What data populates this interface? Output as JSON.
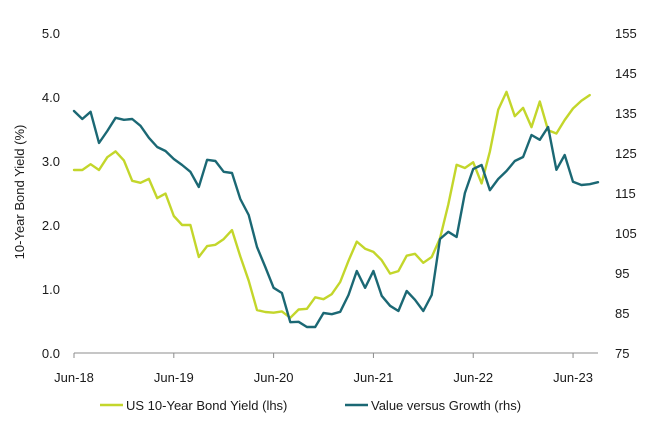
{
  "chart_data": {
    "type": "line",
    "ylabel": "10-Year Bond Yield (%)",
    "y_left": {
      "ticks": [
        "0.0",
        "1.0",
        "2.0",
        "3.0",
        "4.0",
        "5.0"
      ],
      "range": [
        0,
        5
      ]
    },
    "y_right": {
      "ticks": [
        "75",
        "85",
        "95",
        "105",
        "115",
        "125",
        "135",
        "145",
        "155"
      ],
      "range": [
        75,
        155
      ]
    },
    "x_ticks": [
      "Jun-18",
      "Jun-19",
      "Jun-20",
      "Jun-21",
      "Jun-22",
      "Jun-23"
    ],
    "x_tick_index": [
      0,
      12,
      24,
      36,
      48,
      60
    ],
    "grid": false,
    "legend_position": "bottom",
    "series": [
      {
        "name": "US 10-Year Bond Yield (lhs)",
        "axis": "left",
        "color": "#c3d62b",
        "values": [
          2.86,
          2.86,
          2.95,
          2.86,
          3.06,
          3.15,
          3.01,
          2.69,
          2.66,
          2.72,
          2.42,
          2.49,
          2.14,
          2.0,
          2.0,
          1.5,
          1.67,
          1.69,
          1.78,
          1.92,
          1.51,
          1.13,
          0.67,
          0.64,
          0.63,
          0.65,
          0.55,
          0.68,
          0.69,
          0.87,
          0.84,
          0.92,
          1.11,
          1.44,
          1.74,
          1.63,
          1.58,
          1.45,
          1.24,
          1.28,
          1.52,
          1.55,
          1.41,
          1.5,
          1.79,
          2.32,
          2.94,
          2.89,
          2.98,
          2.65,
          3.15,
          3.8,
          4.08,
          3.7,
          3.83,
          3.53,
          3.93,
          3.48,
          3.43,
          3.64,
          3.82,
          3.94,
          4.03
        ]
      },
      {
        "name": "Value versus Growth (rhs)",
        "axis": "right",
        "color": "#1b6874",
        "values": [
          135.5,
          133.5,
          135.3,
          127.5,
          130.5,
          133.8,
          133.3,
          133.5,
          131.8,
          128.8,
          126.5,
          125.5,
          123.5,
          122,
          120.3,
          116.5,
          123.3,
          123,
          120.3,
          120,
          113.5,
          109.5,
          101.5,
          96.5,
          91.3,
          90,
          82.7,
          82.8,
          81.5,
          81.5,
          85,
          84.7,
          85.3,
          89.5,
          95.5,
          91.3,
          95.5,
          89.3,
          86.8,
          85.5,
          90.5,
          88.3,
          85.5,
          89.5,
          103.5,
          105.3,
          104,
          115,
          121,
          122,
          115.7,
          118.5,
          120.5,
          123,
          124,
          129.5,
          128.3,
          131.5,
          120.8,
          124.5,
          117.8,
          117,
          117.2,
          117.7
        ]
      }
    ]
  }
}
